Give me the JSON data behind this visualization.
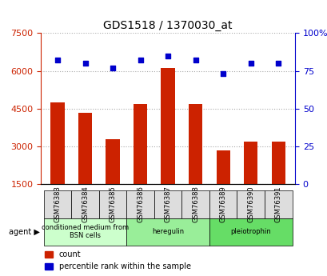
{
  "title": "GDS1518 / 1370030_at",
  "samples": [
    "GSM76383",
    "GSM76384",
    "GSM76385",
    "GSM76386",
    "GSM76387",
    "GSM76388",
    "GSM76389",
    "GSM76390",
    "GSM76391"
  ],
  "counts": [
    4750,
    4350,
    3300,
    4700,
    6100,
    4700,
    2850,
    3200,
    3200
  ],
  "percentiles": [
    82,
    80,
    77,
    82,
    85,
    82,
    73,
    80,
    80
  ],
  "ylim_left": [
    1500,
    7500
  ],
  "ylim_right": [
    0,
    100
  ],
  "yticks_left": [
    1500,
    3000,
    4500,
    6000,
    7500
  ],
  "yticks_right": [
    0,
    25,
    50,
    75,
    100
  ],
  "bar_color": "#cc2200",
  "dot_color": "#0000cc",
  "grid_color": "#aaaaaa",
  "agent_groups": [
    {
      "label": "conditioned medium from\nBSN cells",
      "start": 0,
      "end": 3,
      "color": "#ccffcc"
    },
    {
      "label": "heregulin",
      "start": 3,
      "end": 6,
      "color": "#99ee99"
    },
    {
      "label": "pleiotrophin",
      "start": 6,
      "end": 9,
      "color": "#66dd66"
    }
  ],
  "xlabel_color": "#cc2200",
  "ylabel_right_color": "#0000cc",
  "bar_width": 0.5
}
